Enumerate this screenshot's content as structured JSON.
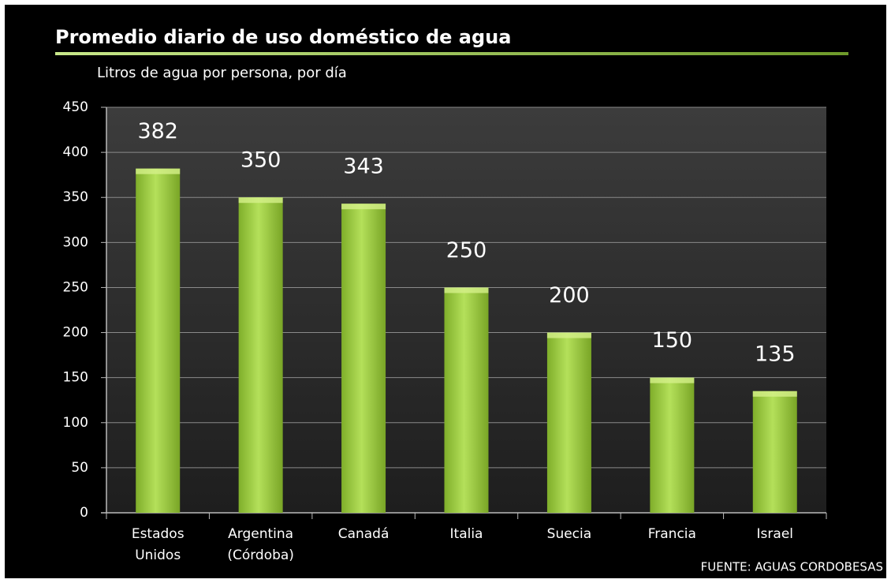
{
  "chart_data": {
    "type": "bar",
    "title": "Promedio diario de uso doméstico de agua",
    "subtitle": "Litros de agua por persona, por día",
    "source": "FUENTE:  AGUAS  CORDOBESAS",
    "categories": [
      "Estados Unidos",
      "Argentina (Córdoba)",
      "Canadá",
      "Italia",
      "Suecia",
      "Francia",
      "Israel"
    ],
    "values": [
      382,
      350,
      343,
      250,
      200,
      150,
      135
    ],
    "color": "#9acd3c",
    "ylim": [
      0,
      450
    ],
    "yticks": [
      0,
      50,
      100,
      150,
      200,
      250,
      300,
      350,
      400,
      450
    ],
    "grid": true
  }
}
